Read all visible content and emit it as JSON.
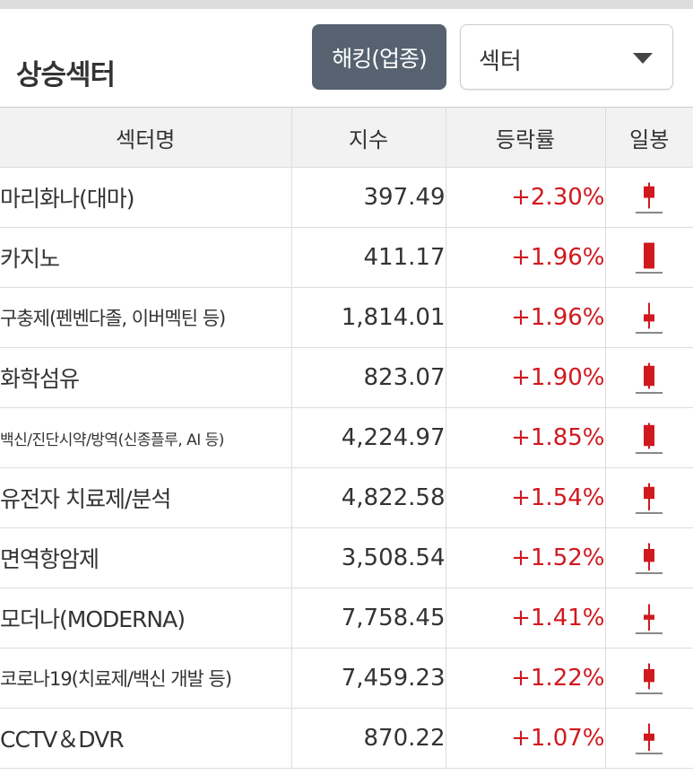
{
  "header": {
    "title": "상승섹터",
    "hacking_button": "해킹(업종)",
    "select_value": "섹터"
  },
  "table": {
    "columns": [
      "섹터명",
      "지수",
      "등락률",
      "일봉"
    ],
    "rows": [
      {
        "name": "마리화나(대마)",
        "index": "397.49",
        "change": "+2.30%",
        "candle": {
          "open": 0.42,
          "close": 0.82,
          "low": 0.05,
          "high": 0.95
        }
      },
      {
        "name": "카지노",
        "index": "411.17",
        "change": "+1.96%",
        "candle": {
          "open": 0.05,
          "close": 0.95,
          "low": 0.05,
          "high": 0.95
        }
      },
      {
        "name": "구충제(펜벤다졸, 이버멕틴 등)",
        "index": "1,814.01",
        "change": "+1.96%",
        "candle": {
          "open": 0.3,
          "close": 0.55,
          "low": 0.05,
          "high": 0.95
        }
      },
      {
        "name": "화학섬유",
        "index": "823.07",
        "change": "+1.90%",
        "candle": {
          "open": 0.15,
          "close": 0.85,
          "low": 0.05,
          "high": 0.95
        }
      },
      {
        "name": "백신/진단시약/방역(신종플루, AI 등)",
        "index": "4,224.97",
        "change": "+1.85%",
        "candle": {
          "open": 0.15,
          "close": 0.88,
          "low": 0.05,
          "high": 0.95
        }
      },
      {
        "name": "유전자 치료제/분석",
        "index": "4,822.58",
        "change": "+1.54%",
        "candle": {
          "open": 0.4,
          "close": 0.82,
          "low": 0.0,
          "high": 0.95
        }
      },
      {
        "name": "면역항암제",
        "index": "3,508.54",
        "change": "+1.52%",
        "candle": {
          "open": 0.3,
          "close": 0.75,
          "low": 0.0,
          "high": 0.95
        }
      },
      {
        "name": "모더나(MODERNA)",
        "index": "7,758.45",
        "change": "+1.41%",
        "candle": {
          "open": 0.38,
          "close": 0.55,
          "low": 0.0,
          "high": 0.92
        }
      },
      {
        "name": "코로나19(치료제/백신 개발 등)",
        "index": "7,459.23",
        "change": "+1.22%",
        "candle": {
          "open": 0.3,
          "close": 0.75,
          "low": 0.05,
          "high": 0.95
        }
      },
      {
        "name": "CCTV＆DVR",
        "index": "870.22",
        "change": "+1.07%",
        "candle": {
          "open": 0.35,
          "close": 0.6,
          "low": 0.0,
          "high": 0.95
        }
      }
    ]
  },
  "colors": {
    "up": "#d0191f",
    "button_bg": "#566270",
    "header_bg": "#f2f2f2"
  }
}
